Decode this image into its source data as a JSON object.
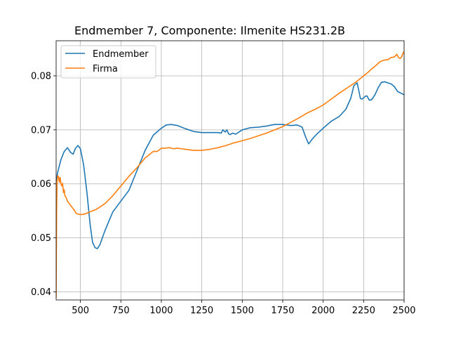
{
  "chart_data": {
    "type": "line",
    "title": "Endmember 7, Componente: Ilmenite HS231.2B",
    "xlabel": "",
    "ylabel": "",
    "xlim": [
      350,
      2500
    ],
    "ylim": [
      0.0385,
      0.0865
    ],
    "xticks": [
      500,
      750,
      1000,
      1250,
      1500,
      1750,
      2000,
      2250,
      2500
    ],
    "yticks": [
      0.04,
      0.05,
      0.06,
      0.07,
      0.08
    ],
    "grid": true,
    "legend_position": "top-left",
    "series": [
      {
        "name": "Endmember",
        "color": "#1f77b4",
        "points": [
          [
            350,
            0.0605
          ],
          [
            360,
            0.0622
          ],
          [
            380,
            0.0645
          ],
          [
            400,
            0.066
          ],
          [
            420,
            0.0667
          ],
          [
            440,
            0.0658
          ],
          [
            455,
            0.0655
          ],
          [
            470,
            0.0666
          ],
          [
            485,
            0.0671
          ],
          [
            500,
            0.0665
          ],
          [
            520,
            0.0635
          ],
          [
            540,
            0.0585
          ],
          [
            560,
            0.0525
          ],
          [
            575,
            0.0492
          ],
          [
            590,
            0.0482
          ],
          [
            605,
            0.048
          ],
          [
            620,
            0.0487
          ],
          [
            650,
            0.0512
          ],
          [
            700,
            0.0548
          ],
          [
            750,
            0.0568
          ],
          [
            800,
            0.0588
          ],
          [
            850,
            0.0625
          ],
          [
            900,
            0.0662
          ],
          [
            950,
            0.069
          ],
          [
            1000,
            0.0703
          ],
          [
            1030,
            0.0709
          ],
          [
            1060,
            0.071
          ],
          [
            1100,
            0.0708
          ],
          [
            1150,
            0.0702
          ],
          [
            1200,
            0.0697
          ],
          [
            1250,
            0.0695
          ],
          [
            1300,
            0.0695
          ],
          [
            1350,
            0.0695
          ],
          [
            1370,
            0.0694
          ],
          [
            1380,
            0.07
          ],
          [
            1395,
            0.0696
          ],
          [
            1405,
            0.07
          ],
          [
            1415,
            0.0693
          ],
          [
            1425,
            0.0691
          ],
          [
            1440,
            0.0694
          ],
          [
            1460,
            0.0692
          ],
          [
            1500,
            0.07
          ],
          [
            1550,
            0.0704
          ],
          [
            1600,
            0.0705
          ],
          [
            1650,
            0.0707
          ],
          [
            1700,
            0.071
          ],
          [
            1750,
            0.071
          ],
          [
            1800,
            0.0708
          ],
          [
            1840,
            0.0709
          ],
          [
            1870,
            0.0705
          ],
          [
            1890,
            0.0688
          ],
          [
            1910,
            0.0674
          ],
          [
            1930,
            0.0682
          ],
          [
            1960,
            0.0692
          ],
          [
            2000,
            0.0703
          ],
          [
            2050,
            0.0716
          ],
          [
            2100,
            0.0725
          ],
          [
            2140,
            0.0738
          ],
          [
            2170,
            0.0758
          ],
          [
            2190,
            0.0782
          ],
          [
            2210,
            0.0787
          ],
          [
            2220,
            0.0773
          ],
          [
            2230,
            0.0758
          ],
          [
            2240,
            0.0757
          ],
          [
            2260,
            0.0762
          ],
          [
            2270,
            0.0763
          ],
          [
            2285,
            0.0755
          ],
          [
            2300,
            0.0756
          ],
          [
            2320,
            0.0765
          ],
          [
            2340,
            0.0778
          ],
          [
            2360,
            0.0788
          ],
          [
            2380,
            0.0789
          ],
          [
            2400,
            0.0787
          ],
          [
            2420,
            0.0785
          ],
          [
            2440,
            0.078
          ],
          [
            2460,
            0.0771
          ],
          [
            2480,
            0.0768
          ],
          [
            2500,
            0.0765
          ]
        ]
      },
      {
        "name": "Firma",
        "color": "#ff7f0e",
        "points": [
          [
            350,
            0.039
          ],
          [
            353,
            0.055
          ],
          [
            356,
            0.0605
          ],
          [
            360,
            0.0615
          ],
          [
            365,
            0.0613
          ],
          [
            370,
            0.0603
          ],
          [
            375,
            0.0612
          ],
          [
            380,
            0.06
          ],
          [
            385,
            0.0596
          ],
          [
            390,
            0.0601
          ],
          [
            395,
            0.0584
          ],
          [
            400,
            0.0589
          ],
          [
            405,
            0.0577
          ],
          [
            410,
            0.0576
          ],
          [
            420,
            0.0568
          ],
          [
            440,
            0.056
          ],
          [
            460,
            0.0552
          ],
          [
            475,
            0.0545
          ],
          [
            500,
            0.0543
          ],
          [
            525,
            0.0544
          ],
          [
            550,
            0.0547
          ],
          [
            575,
            0.055
          ],
          [
            600,
            0.0553
          ],
          [
            650,
            0.0563
          ],
          [
            700,
            0.0578
          ],
          [
            750,
            0.0596
          ],
          [
            800,
            0.0614
          ],
          [
            850,
            0.063
          ],
          [
            900,
            0.0648
          ],
          [
            950,
            0.066
          ],
          [
            975,
            0.066
          ],
          [
            1000,
            0.0666
          ],
          [
            1025,
            0.0666
          ],
          [
            1050,
            0.0667
          ],
          [
            1075,
            0.0665
          ],
          [
            1100,
            0.0666
          ],
          [
            1125,
            0.0665
          ],
          [
            1150,
            0.0664
          ],
          [
            1200,
            0.0662
          ],
          [
            1250,
            0.0662
          ],
          [
            1300,
            0.0664
          ],
          [
            1350,
            0.0667
          ],
          [
            1400,
            0.0671
          ],
          [
            1450,
            0.0676
          ],
          [
            1500,
            0.068
          ],
          [
            1550,
            0.0684
          ],
          [
            1600,
            0.0689
          ],
          [
            1650,
            0.0694
          ],
          [
            1700,
            0.07
          ],
          [
            1750,
            0.0706
          ],
          [
            1800,
            0.0714
          ],
          [
            1850,
            0.0722
          ],
          [
            1900,
            0.0731
          ],
          [
            1950,
            0.0738
          ],
          [
            2000,
            0.0746
          ],
          [
            2050,
            0.0757
          ],
          [
            2100,
            0.0768
          ],
          [
            2150,
            0.0778
          ],
          [
            2200,
            0.0788
          ],
          [
            2225,
            0.0794
          ],
          [
            2250,
            0.08
          ],
          [
            2275,
            0.0806
          ],
          [
            2300,
            0.0813
          ],
          [
            2325,
            0.0819
          ],
          [
            2350,
            0.0826
          ],
          [
            2375,
            0.0829
          ],
          [
            2400,
            0.083
          ],
          [
            2420,
            0.0834
          ],
          [
            2440,
            0.0835
          ],
          [
            2455,
            0.084
          ],
          [
            2465,
            0.0834
          ],
          [
            2475,
            0.0832
          ],
          [
            2485,
            0.0835
          ],
          [
            2493,
            0.0842
          ],
          [
            2500,
            0.0845
          ]
        ]
      }
    ]
  }
}
